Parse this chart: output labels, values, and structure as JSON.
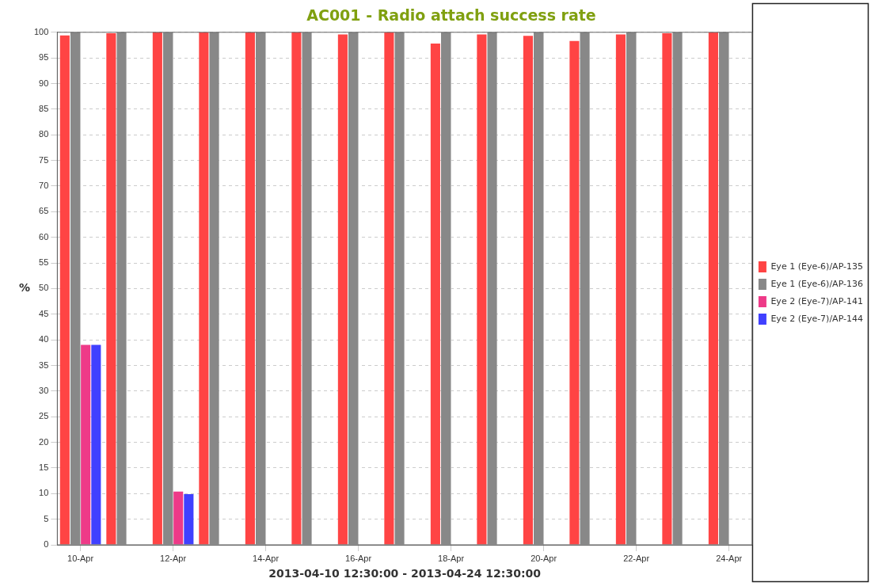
{
  "chart_data": {
    "type": "bar",
    "title": "AC001 - Radio attach success rate",
    "xlabel": "2013-04-10 12:30:00 - 2013-04-24 12:30:00",
    "ylabel": "%",
    "categories": [
      "10-Apr",
      null,
      "12-Apr",
      null,
      "14-Apr",
      null,
      "16-Apr",
      null,
      "18-Apr",
      null,
      "20-Apr",
      null,
      "22-Apr",
      null,
      "24-Apr"
    ],
    "series": [
      {
        "name": "Eye 1 (Eye-6)/AP-135",
        "color": "#ff4444",
        "values": [
          99.4,
          99.8,
          100,
          100,
          100,
          100,
          99.6,
          100,
          97.8,
          99.6,
          99.3,
          98.3,
          99.6,
          99.8,
          100
        ]
      },
      {
        "name": "Eye 1 (Eye-6)/AP-136",
        "color": "#888888",
        "values": [
          100,
          100,
          100,
          100,
          100,
          100,
          100,
          100,
          100,
          100,
          100,
          100,
          100,
          100,
          100
        ]
      },
      {
        "name": "Eye 2 (Eye-7)/AP-141",
        "color": "#ee3a88",
        "values": [
          39.0,
          null,
          10.4,
          null,
          null,
          null,
          null,
          null,
          null,
          null,
          null,
          null,
          null,
          null,
          null
        ]
      },
      {
        "name": "Eye 2 (Eye-7)/AP-144",
        "color": "#4040ff",
        "values": [
          39.0,
          null,
          9.9,
          null,
          null,
          null,
          null,
          null,
          null,
          null,
          null,
          null,
          null,
          null,
          null
        ]
      }
    ],
    "ylim": [
      0,
      100
    ],
    "yticks": [
      0,
      5,
      10,
      15,
      20,
      25,
      30,
      35,
      40,
      45,
      50,
      55,
      60,
      65,
      70,
      75,
      80,
      85,
      90,
      95,
      100
    ],
    "grid": true,
    "legend": "right"
  }
}
